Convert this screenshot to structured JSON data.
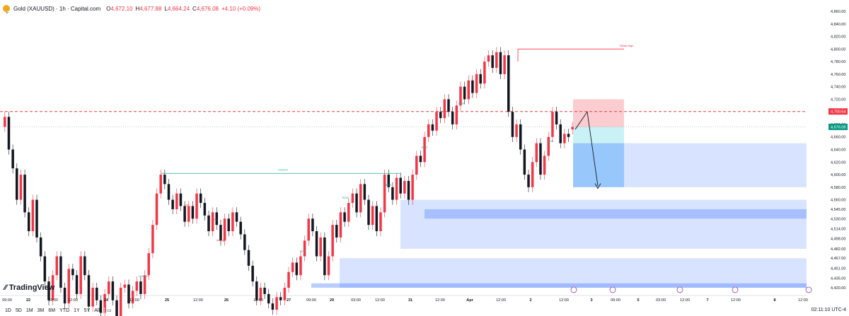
{
  "header": {
    "title": "Gold (XAUUSD) · 1h · Capital.com",
    "ohlc": [
      {
        "label": "O",
        "value": "4,672.10"
      },
      {
        "label": "H",
        "value": "4,677.88"
      },
      {
        "label": "L",
        "value": "4,664.24"
      },
      {
        "label": "C",
        "value": "4,676.08"
      }
    ],
    "change": "+4.10 (+0.09%)"
  },
  "brand": "TradingView",
  "timeframes": [
    "1D",
    "5D",
    "1M",
    "3M",
    "6M",
    "YTD",
    "1Y",
    "5Y",
    "All"
  ],
  "clock": "02:11:10 UTC-4",
  "colors": {
    "up": "#f23645",
    "down": "#131722",
    "zone": "#2962ff",
    "target": "#2962ff",
    "stop": "#f23645",
    "line": "#26a69a"
  },
  "chart_data": {
    "type": "candlestick",
    "symbol": "Gold (XAUUSD)",
    "interval": "1h",
    "y_ticks": [
      "4,420.00",
      "4,435.00",
      "4,451.00",
      "4,467.00",
      "4,482.00",
      "4,498.00",
      "4,514.00",
      "4,530.00",
      "4,545.00",
      "4,560.00",
      "4,580.00",
      "4,600.00",
      "4,620.00",
      "4,640.00",
      "4,660.00",
      "4,680.00",
      "4,700.00",
      "4,720.00",
      "4,740.00",
      "4,760.00",
      "4,780.00",
      "4,800.00",
      "4,820.00",
      "4,840.00",
      "4,860.00"
    ],
    "y_tick_values": [
      4420,
      4435,
      4451,
      4467,
      4482,
      4498,
      4514,
      4530,
      4545,
      4560,
      4580,
      4600,
      4620,
      4640,
      4660,
      4680,
      4700,
      4720,
      4740,
      4760,
      4780,
      4800,
      4820,
      4840,
      4860
    ],
    "x_ticks": [
      "09:00",
      "22",
      "03:00",
      "12:00",
      "24",
      "12:00",
      "25",
      "12:00",
      "26",
      "12:00",
      "27",
      "09:00",
      "29",
      "03:00",
      "12:00",
      "31",
      "12:00",
      "Apr",
      "12:00",
      "2",
      "12:00",
      "3",
      "09:00",
      "5",
      "03:00",
      "12:00",
      "7",
      "12:00",
      "8",
      "12:00"
    ],
    "price_label_top": "4,700.54",
    "price_label_current": "4,676.08",
    "annotations": [
      "Weak High",
      "CHoCH",
      "BOS",
      "BOS",
      "BOS",
      "BOS",
      "BOS",
      "CHoCH",
      "BOS",
      "SSL",
      "SSL",
      "strong"
    ],
    "series": [
      {
        "o": 4676,
        "c": 4692
      },
      {
        "o": 4692,
        "c": 4640
      },
      {
        "o": 4640,
        "c": 4610
      },
      {
        "o": 4610,
        "c": 4560
      },
      {
        "o": 4560,
        "c": 4600
      },
      {
        "o": 4600,
        "c": 4540
      },
      {
        "o": 4540,
        "c": 4510
      },
      {
        "o": 4510,
        "c": 4560
      },
      {
        "o": 4560,
        "c": 4500
      },
      {
        "o": 4500,
        "c": 4470
      },
      {
        "o": 4470,
        "c": 4430
      },
      {
        "o": 4430,
        "c": 4400
      },
      {
        "o": 4400,
        "c": 4440
      },
      {
        "o": 4440,
        "c": 4470
      },
      {
        "o": 4470,
        "c": 4420
      },
      {
        "o": 4420,
        "c": 4395
      },
      {
        "o": 4395,
        "c": 4450
      },
      {
        "o": 4450,
        "c": 4440
      },
      {
        "o": 4440,
        "c": 4410
      },
      {
        "o": 4410,
        "c": 4470
      },
      {
        "o": 4470,
        "c": 4440
      },
      {
        "o": 4440,
        "c": 4390
      },
      {
        "o": 4390,
        "c": 4420
      },
      {
        "o": 4420,
        "c": 4400
      },
      {
        "o": 4400,
        "c": 4380
      },
      {
        "o": 4380,
        "c": 4410
      },
      {
        "o": 4410,
        "c": 4430
      },
      {
        "o": 4430,
        "c": 4400
      },
      {
        "o": 4400,
        "c": 4370
      },
      {
        "o": 4370,
        "c": 4420
      },
      {
        "o": 4420,
        "c": 4425
      },
      {
        "o": 4425,
        "c": 4395
      },
      {
        "o": 4395,
        "c": 4415
      },
      {
        "o": 4415,
        "c": 4430
      },
      {
        "o": 4430,
        "c": 4410
      },
      {
        "o": 4410,
        "c": 4440
      },
      {
        "o": 4440,
        "c": 4475
      },
      {
        "o": 4475,
        "c": 4520
      },
      {
        "o": 4520,
        "c": 4570
      },
      {
        "o": 4570,
        "c": 4600
      },
      {
        "o": 4600,
        "c": 4585
      },
      {
        "o": 4585,
        "c": 4560
      },
      {
        "o": 4560,
        "c": 4545
      },
      {
        "o": 4545,
        "c": 4570
      },
      {
        "o": 4570,
        "c": 4550
      },
      {
        "o": 4550,
        "c": 4525
      },
      {
        "o": 4525,
        "c": 4550
      },
      {
        "o": 4550,
        "c": 4530
      },
      {
        "o": 4530,
        "c": 4570
      },
      {
        "o": 4570,
        "c": 4555
      },
      {
        "o": 4555,
        "c": 4535
      },
      {
        "o": 4535,
        "c": 4510
      },
      {
        "o": 4510,
        "c": 4540
      },
      {
        "o": 4540,
        "c": 4520
      },
      {
        "o": 4520,
        "c": 4495
      },
      {
        "o": 4495,
        "c": 4530
      },
      {
        "o": 4530,
        "c": 4510
      },
      {
        "o": 4510,
        "c": 4540
      },
      {
        "o": 4540,
        "c": 4525
      },
      {
        "o": 4525,
        "c": 4505
      },
      {
        "o": 4505,
        "c": 4480
      },
      {
        "o": 4480,
        "c": 4455
      },
      {
        "o": 4455,
        "c": 4430
      },
      {
        "o": 4430,
        "c": 4400
      },
      {
        "o": 4400,
        "c": 4420
      },
      {
        "o": 4420,
        "c": 4410
      },
      {
        "o": 4410,
        "c": 4395
      },
      {
        "o": 4395,
        "c": 4385
      },
      {
        "o": 4385,
        "c": 4405
      },
      {
        "o": 4405,
        "c": 4400
      },
      {
        "o": 4400,
        "c": 4420
      },
      {
        "o": 4420,
        "c": 4445
      },
      {
        "o": 4445,
        "c": 4460
      },
      {
        "o": 4460,
        "c": 4440
      },
      {
        "o": 4440,
        "c": 4470
      },
      {
        "o": 4470,
        "c": 4495
      },
      {
        "o": 4495,
        "c": 4530
      },
      {
        "o": 4530,
        "c": 4510
      },
      {
        "o": 4510,
        "c": 4470
      },
      {
        "o": 4470,
        "c": 4500
      },
      {
        "o": 4500,
        "c": 4440
      },
      {
        "o": 4440,
        "c": 4470
      },
      {
        "o": 4470,
        "c": 4520
      },
      {
        "o": 4520,
        "c": 4500
      },
      {
        "o": 4500,
        "c": 4540
      },
      {
        "o": 4540,
        "c": 4525
      },
      {
        "o": 4525,
        "c": 4555
      },
      {
        "o": 4555,
        "c": 4570
      },
      {
        "o": 4570,
        "c": 4540
      },
      {
        "o": 4540,
        "c": 4585
      },
      {
        "o": 4585,
        "c": 4560
      },
      {
        "o": 4560,
        "c": 4520
      },
      {
        "o": 4520,
        "c": 4550
      },
      {
        "o": 4550,
        "c": 4510
      },
      {
        "o": 4510,
        "c": 4540
      },
      {
        "o": 4540,
        "c": 4600
      },
      {
        "o": 4600,
        "c": 4580
      },
      {
        "o": 4580,
        "c": 4560
      },
      {
        "o": 4560,
        "c": 4595
      },
      {
        "o": 4595,
        "c": 4570
      },
      {
        "o": 4570,
        "c": 4590
      },
      {
        "o": 4590,
        "c": 4560
      },
      {
        "o": 4560,
        "c": 4600
      },
      {
        "o": 4600,
        "c": 4630
      },
      {
        "o": 4630,
        "c": 4620
      },
      {
        "o": 4620,
        "c": 4660
      },
      {
        "o": 4660,
        "c": 4680
      },
      {
        "o": 4680,
        "c": 4670
      },
      {
        "o": 4670,
        "c": 4700
      },
      {
        "o": 4700,
        "c": 4690
      },
      {
        "o": 4690,
        "c": 4720
      },
      {
        "o": 4720,
        "c": 4700
      },
      {
        "o": 4700,
        "c": 4680
      },
      {
        "o": 4680,
        "c": 4710
      },
      {
        "o": 4710,
        "c": 4740
      },
      {
        "o": 4740,
        "c": 4720
      },
      {
        "o": 4720,
        "c": 4750
      },
      {
        "o": 4750,
        "c": 4730
      },
      {
        "o": 4730,
        "c": 4760
      },
      {
        "o": 4760,
        "c": 4745
      },
      {
        "o": 4745,
        "c": 4780
      },
      {
        "o": 4780,
        "c": 4790
      },
      {
        "o": 4790,
        "c": 4770
      },
      {
        "o": 4770,
        "c": 4795
      },
      {
        "o": 4795,
        "c": 4760
      },
      {
        "o": 4760,
        "c": 4790
      },
      {
        "o": 4790,
        "c": 4700
      },
      {
        "o": 4700,
        "c": 4660
      },
      {
        "o": 4660,
        "c": 4680
      },
      {
        "o": 4680,
        "c": 4640
      },
      {
        "o": 4640,
        "c": 4600
      },
      {
        "o": 4600,
        "c": 4580
      },
      {
        "o": 4580,
        "c": 4620
      },
      {
        "o": 4620,
        "c": 4650
      },
      {
        "o": 4650,
        "c": 4600
      },
      {
        "o": 4600,
        "c": 4630
      },
      {
        "o": 4630,
        "c": 4660
      },
      {
        "o": 4660,
        "c": 4700
      },
      {
        "o": 4700,
        "c": 4680
      },
      {
        "o": 4680,
        "c": 4650
      },
      {
        "o": 4650,
        "c": 4665
      },
      {
        "o": 4665,
        "c": 4660
      },
      {
        "o": 4672,
        "c": 4676
      }
    ]
  }
}
